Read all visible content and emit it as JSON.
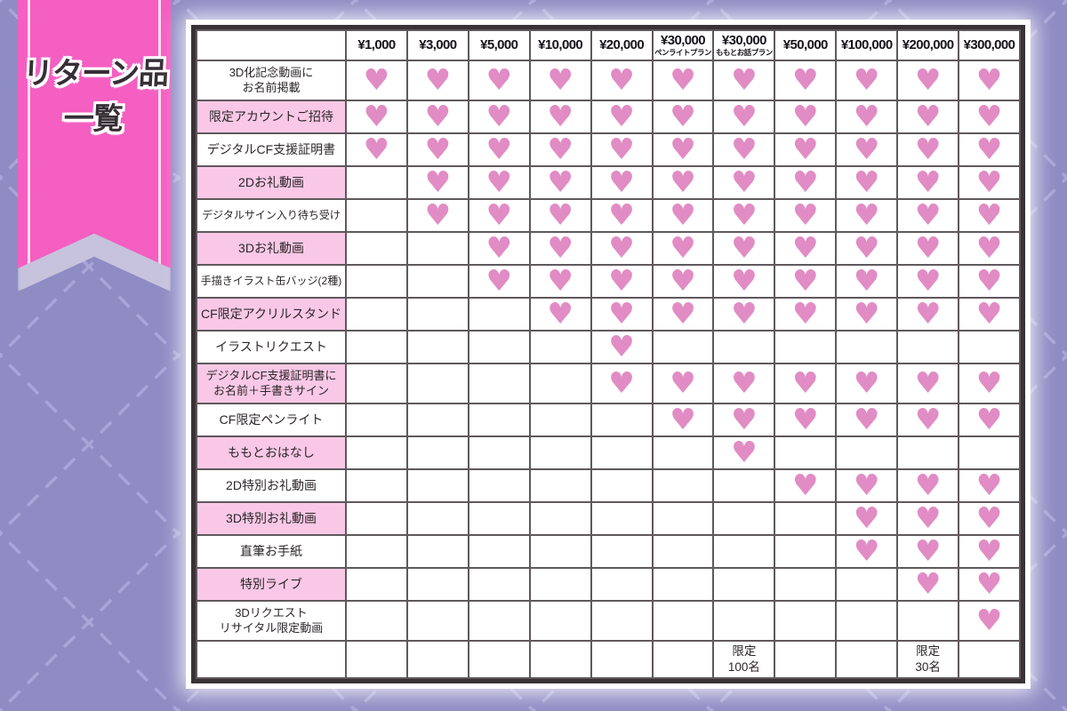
{
  "banner": {
    "title_line1": "リターン品",
    "title_line2": "一覧"
  },
  "chart_data": {
    "type": "table",
    "title": "リターン品一覧",
    "heart_icon": "♥",
    "columns": [
      {
        "price": "¥1,000",
        "plan": ""
      },
      {
        "price": "¥3,000",
        "plan": ""
      },
      {
        "price": "¥5,000",
        "plan": ""
      },
      {
        "price": "¥10,000",
        "plan": ""
      },
      {
        "price": "¥20,000",
        "plan": ""
      },
      {
        "price": "¥30,000",
        "plan": "ペンライトプラン"
      },
      {
        "price": "¥30,000",
        "plan": "ももとお話プラン"
      },
      {
        "price": "¥50,000",
        "plan": ""
      },
      {
        "price": "¥100,000",
        "plan": ""
      },
      {
        "price": "¥200,000",
        "plan": ""
      },
      {
        "price": "¥300,000",
        "plan": ""
      }
    ],
    "rows": [
      {
        "label": "3D化記念動画に\nお名前掲載",
        "highlight": false,
        "hearts": [
          1,
          1,
          1,
          1,
          1,
          1,
          1,
          1,
          1,
          1,
          1
        ]
      },
      {
        "label": "限定アカウントご招待",
        "highlight": true,
        "hearts": [
          1,
          1,
          1,
          1,
          1,
          1,
          1,
          1,
          1,
          1,
          1
        ]
      },
      {
        "label": "デジタルCF支援証明書",
        "highlight": false,
        "hearts": [
          1,
          1,
          1,
          1,
          1,
          1,
          1,
          1,
          1,
          1,
          1
        ]
      },
      {
        "label": "2Dお礼動画",
        "highlight": true,
        "hearts": [
          0,
          1,
          1,
          1,
          1,
          1,
          1,
          1,
          1,
          1,
          1
        ]
      },
      {
        "label": "デジタルサイン入り待ち受け",
        "highlight": false,
        "hearts": [
          0,
          1,
          1,
          1,
          1,
          1,
          1,
          1,
          1,
          1,
          1
        ]
      },
      {
        "label": "3Dお礼動画",
        "highlight": true,
        "hearts": [
          0,
          0,
          1,
          1,
          1,
          1,
          1,
          1,
          1,
          1,
          1
        ]
      },
      {
        "label": "手描きイラスト缶バッジ(2種)",
        "highlight": false,
        "hearts": [
          0,
          0,
          1,
          1,
          1,
          1,
          1,
          1,
          1,
          1,
          1
        ]
      },
      {
        "label": "CF限定アクリルスタンド",
        "highlight": true,
        "hearts": [
          0,
          0,
          0,
          1,
          1,
          1,
          1,
          1,
          1,
          1,
          1
        ]
      },
      {
        "label": "イラストリクエスト",
        "highlight": false,
        "hearts": [
          0,
          0,
          0,
          0,
          1,
          0,
          0,
          0,
          0,
          0,
          0
        ]
      },
      {
        "label": "デジタルCF支援証明書に\nお名前＋手書きサイン",
        "highlight": true,
        "hearts": [
          0,
          0,
          0,
          0,
          1,
          1,
          1,
          1,
          1,
          1,
          1
        ]
      },
      {
        "label": "CF限定ペンライト",
        "highlight": false,
        "hearts": [
          0,
          0,
          0,
          0,
          0,
          1,
          1,
          1,
          1,
          1,
          1
        ]
      },
      {
        "label": "ももとおはなし",
        "highlight": true,
        "hearts": [
          0,
          0,
          0,
          0,
          0,
          0,
          1,
          0,
          0,
          0,
          0
        ]
      },
      {
        "label": "2D特別お礼動画",
        "highlight": false,
        "hearts": [
          0,
          0,
          0,
          0,
          0,
          0,
          0,
          1,
          1,
          1,
          1
        ]
      },
      {
        "label": "3D特別お礼動画",
        "highlight": true,
        "hearts": [
          0,
          0,
          0,
          0,
          0,
          0,
          0,
          0,
          1,
          1,
          1
        ]
      },
      {
        "label": "直筆お手紙",
        "highlight": false,
        "hearts": [
          0,
          0,
          0,
          0,
          0,
          0,
          0,
          0,
          1,
          1,
          1
        ]
      },
      {
        "label": "特別ライブ",
        "highlight": true,
        "hearts": [
          0,
          0,
          0,
          0,
          0,
          0,
          0,
          0,
          0,
          1,
          1
        ]
      },
      {
        "label": "3Dリクエスト\nリサイタル限定動画",
        "highlight": false,
        "hearts": [
          0,
          0,
          0,
          0,
          0,
          0,
          0,
          0,
          0,
          0,
          1
        ]
      }
    ],
    "footer_notes": [
      {
        "col": 6,
        "text": "限定\n100名"
      },
      {
        "col": 9,
        "text": "限定\n30名"
      }
    ]
  },
  "colors": {
    "background": "#8f8cc4",
    "pattern_dash": "#a8a6d8",
    "ribbon_pink": "#f45fc1",
    "ribbon_stripe": "#ffddf1",
    "ribbon_back": "#c7c3dd",
    "highlight_row": "#f9c8e6",
    "heart": "#e18cc4",
    "table_border": "#3a3236",
    "grid_line": "#5f585c",
    "text": "#2b262a",
    "title_text": "#362f35"
  }
}
